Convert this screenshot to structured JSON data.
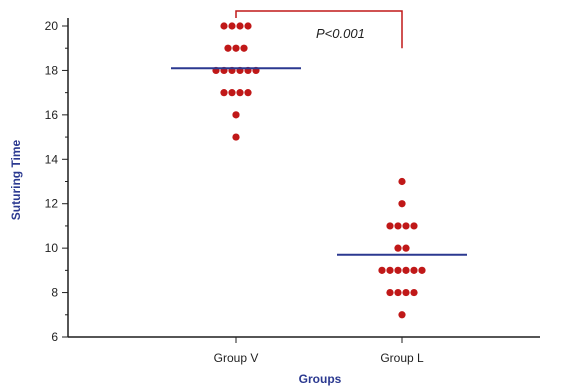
{
  "chart_data": {
    "type": "scatter",
    "title": "",
    "xlabel": "Groups",
    "ylabel": "Suturing Time",
    "ylim": [
      6,
      20
    ],
    "yticks": [
      6,
      8,
      10,
      12,
      14,
      16,
      18,
      20
    ],
    "categories": [
      "Group V",
      "Group L"
    ],
    "series": [
      {
        "category": "Group V",
        "values": [
          20,
          20,
          20,
          20,
          19,
          19,
          19,
          18,
          18,
          18,
          18,
          18,
          18,
          17,
          17,
          17,
          17,
          16,
          15
        ],
        "mean": 18.1
      },
      {
        "category": "Group L",
        "values": [
          13,
          12,
          11,
          11,
          11,
          11,
          10,
          10,
          9,
          9,
          9,
          9,
          9,
          9,
          8,
          8,
          8,
          8,
          7
        ],
        "mean": 9.7
      }
    ],
    "annotation": "P<0.001",
    "colors": {
      "point": "#c01818",
      "mean_line": "#2b3990",
      "axis": "#1f1f1f",
      "bracket": "#c01818"
    },
    "grid": false
  }
}
